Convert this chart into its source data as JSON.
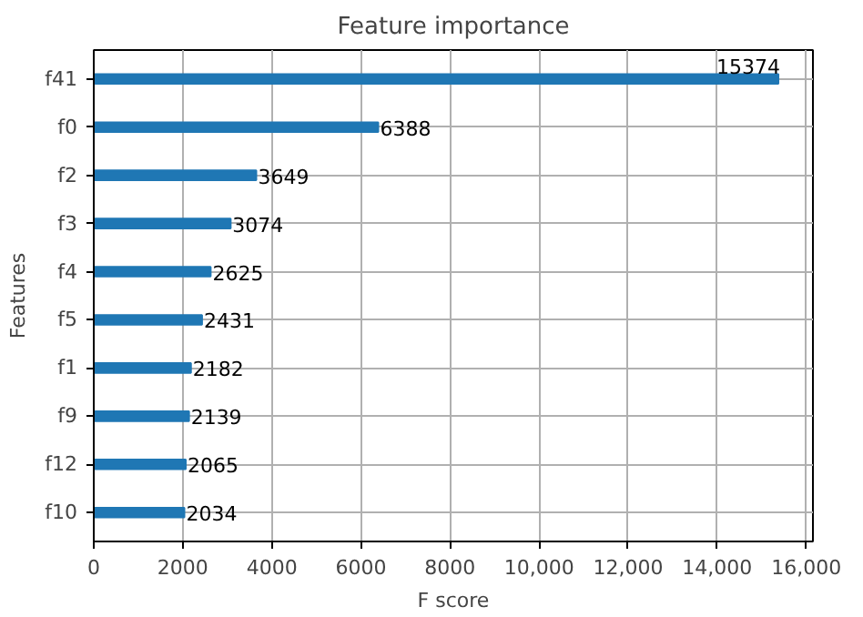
{
  "chart_data": {
    "type": "bar",
    "orientation": "horizontal",
    "title": "Feature importance",
    "xlabel": "F score",
    "ylabel": "Features",
    "categories": [
      "f41",
      "f0",
      "f2",
      "f3",
      "f4",
      "f5",
      "f1",
      "f9",
      "f12",
      "f10"
    ],
    "values": [
      15374,
      6388,
      3649,
      3074,
      2625,
      2431,
      2182,
      2139,
      2065,
      2034
    ],
    "color": "#1f77b4",
    "data_labels": true,
    "grid": true,
    "xlim": [
      0,
      16150
    ],
    "xticks": [
      0,
      2000,
      4000,
      6000,
      8000,
      {
        "value": 10000,
        "label": "10,000"
      },
      {
        "value": 12000,
        "label": "12,000"
      },
      {
        "value": 14000,
        "label": "14,000"
      },
      {
        "value": 16000,
        "label": "16,000"
      }
    ]
  }
}
